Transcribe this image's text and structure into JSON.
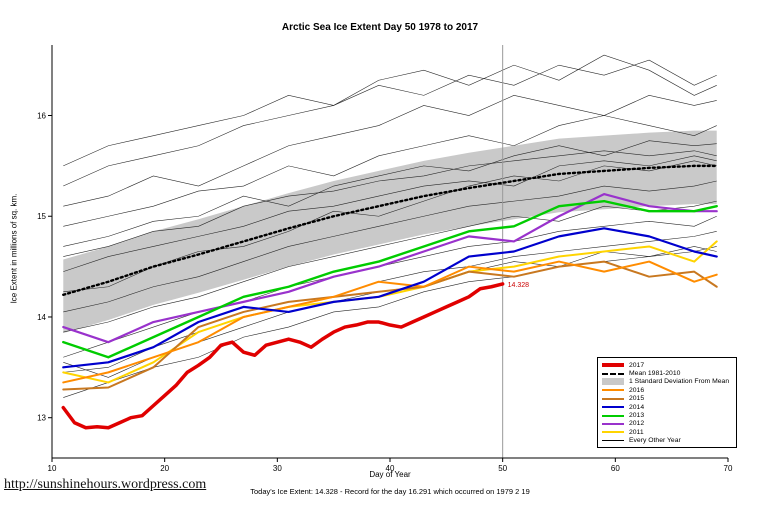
{
  "footer": {
    "url": "http://sunshinehours.wordpress.com",
    "note": "Today's Ice Extent: 14.328  - Record for the day  16.291 which occurred on 1979 2 19"
  },
  "chart_data": {
    "type": "line",
    "title": "Arctic Sea Ice Extent Day 50 1978 to 2017",
    "xlabel": "Day of Year",
    "ylabel": "Ice Extent in millions of sq. km.",
    "xlim": [
      10,
      70
    ],
    "ylim": [
      12.6,
      16.7
    ],
    "xticks": [
      10,
      20,
      30,
      40,
      50,
      60,
      70
    ],
    "yticks": [
      13,
      14,
      15,
      16
    ],
    "vline_x": 50,
    "vline_color": "#999999",
    "annotation": {
      "text": "14.328",
      "x": 50,
      "y": 14.328,
      "color": "#CC0000"
    },
    "x": [
      11,
      15,
      19,
      23,
      27,
      31,
      35,
      39,
      43,
      47,
      51,
      55,
      59,
      63,
      67,
      69
    ],
    "band": {
      "label": "1 Standard Deviation From Mean",
      "color": "#C9C9C9",
      "x": [
        11,
        15,
        19,
        23,
        27,
        31,
        35,
        39,
        43,
        47,
        51,
        55,
        59,
        63,
        67,
        69
      ],
      "upper": [
        14.57,
        14.7,
        14.85,
        14.97,
        15.1,
        15.23,
        15.35,
        15.45,
        15.55,
        15.63,
        15.7,
        15.77,
        15.8,
        15.83,
        15.85,
        15.85
      ],
      "lower": [
        13.84,
        13.97,
        14.12,
        14.24,
        14.37,
        14.5,
        14.62,
        14.72,
        14.82,
        14.9,
        14.97,
        15.04,
        15.07,
        15.1,
        15.12,
        15.12
      ]
    },
    "background": {
      "name": "Every Other Year",
      "color": "#2a2a2a",
      "width": 0.6,
      "lines": [
        [
          15.3,
          15.5,
          15.6,
          15.7,
          15.9,
          16.0,
          16.1,
          16.3,
          16.2,
          16.4,
          16.3,
          16.5,
          16.4,
          16.55,
          16.3,
          16.4
        ],
        [
          15.1,
          15.2,
          15.4,
          15.3,
          15.5,
          15.7,
          15.8,
          15.9,
          16.1,
          16.0,
          16.2,
          16.1,
          16.0,
          16.2,
          16.1,
          16.15
        ],
        [
          14.9,
          15.0,
          15.1,
          15.25,
          15.3,
          15.5,
          15.4,
          15.6,
          15.7,
          15.8,
          15.7,
          15.9,
          16.0,
          15.9,
          15.8,
          15.9
        ],
        [
          14.7,
          14.8,
          14.95,
          15.0,
          15.2,
          15.1,
          15.3,
          15.4,
          15.5,
          15.45,
          15.6,
          15.7,
          15.6,
          15.75,
          15.7,
          15.72
        ],
        [
          14.45,
          14.6,
          14.7,
          14.8,
          14.9,
          15.05,
          15.1,
          15.2,
          15.3,
          15.35,
          15.3,
          15.5,
          15.55,
          15.5,
          15.6,
          15.55
        ],
        [
          14.25,
          14.3,
          14.5,
          14.65,
          14.7,
          14.85,
          15.05,
          15.0,
          15.15,
          15.3,
          15.4,
          15.35,
          15.5,
          15.45,
          15.55,
          15.5
        ],
        [
          14.05,
          14.15,
          14.3,
          14.4,
          14.55,
          14.7,
          14.8,
          14.9,
          15.0,
          15.1,
          15.15,
          15.2,
          15.3,
          15.25,
          15.3,
          15.35
        ],
        [
          13.85,
          13.95,
          14.1,
          14.2,
          14.35,
          14.5,
          14.6,
          14.7,
          14.8,
          14.9,
          15.0,
          14.95,
          15.1,
          15.05,
          15.1,
          15.15
        ],
        [
          13.6,
          13.75,
          13.9,
          14.05,
          14.15,
          14.3,
          14.4,
          14.5,
          14.6,
          14.7,
          14.75,
          14.85,
          14.9,
          14.95,
          14.9,
          15.0
        ],
        [
          13.45,
          13.5,
          13.7,
          13.85,
          14.0,
          14.1,
          14.2,
          14.35,
          14.45,
          14.5,
          14.6,
          14.65,
          14.7,
          14.75,
          14.8,
          14.85
        ],
        [
          13.2,
          13.35,
          13.5,
          13.6,
          13.8,
          13.9,
          14.05,
          14.1,
          14.25,
          14.35,
          14.4,
          14.5,
          14.55,
          14.6,
          14.65,
          14.7
        ],
        [
          13.55,
          13.4,
          13.6,
          13.75,
          13.9,
          14.05,
          14.15,
          14.25,
          14.3,
          14.45,
          14.55,
          14.5,
          14.65,
          14.6,
          14.7,
          14.65
        ],
        [
          15.5,
          15.7,
          15.8,
          15.9,
          16.0,
          16.2,
          16.1,
          16.35,
          16.45,
          16.3,
          16.5,
          16.35,
          16.6,
          16.45,
          16.2,
          16.3
        ],
        [
          14.6,
          14.7,
          14.85,
          14.9,
          15.1,
          15.2,
          15.25,
          15.35,
          15.4,
          15.5,
          15.55,
          15.6,
          15.65,
          15.6,
          15.65,
          15.6
        ]
      ]
    },
    "series": [
      {
        "name": "2011",
        "color": "#FFD400",
        "width": 2,
        "values": [
          13.45,
          13.35,
          13.55,
          13.85,
          14.0,
          14.1,
          14.15,
          14.2,
          14.3,
          14.45,
          14.5,
          14.6,
          14.65,
          14.7,
          14.55,
          14.75
        ]
      },
      {
        "name": "2015",
        "color": "#C87820",
        "width": 2,
        "values": [
          13.28,
          13.3,
          13.5,
          13.9,
          14.05,
          14.15,
          14.2,
          14.25,
          14.3,
          14.45,
          14.4,
          14.5,
          14.55,
          14.4,
          14.45,
          14.3
        ]
      },
      {
        "name": "2016",
        "color": "#FF8C00",
        "width": 2,
        "values": [
          13.35,
          13.45,
          13.6,
          13.75,
          14.0,
          14.1,
          14.2,
          14.35,
          14.3,
          14.5,
          14.45,
          14.55,
          14.45,
          14.55,
          14.35,
          14.42
        ]
      },
      {
        "name": "2014",
        "color": "#0000CD",
        "width": 2.2,
        "values": [
          13.5,
          13.55,
          13.7,
          13.95,
          14.1,
          14.05,
          14.15,
          14.2,
          14.35,
          14.6,
          14.65,
          14.8,
          14.88,
          14.8,
          14.65,
          14.6
        ]
      },
      {
        "name": "2012",
        "color": "#9932CC",
        "width": 2.2,
        "values": [
          13.9,
          13.75,
          13.95,
          14.05,
          14.15,
          14.25,
          14.4,
          14.5,
          14.65,
          14.8,
          14.75,
          15.0,
          15.22,
          15.1,
          15.05,
          15.05
        ]
      },
      {
        "name": "2013",
        "color": "#00CC00",
        "width": 2.4,
        "values": [
          13.75,
          13.6,
          13.8,
          14.0,
          14.2,
          14.3,
          14.45,
          14.55,
          14.7,
          14.85,
          14.9,
          15.1,
          15.15,
          15.05,
          15.05,
          15.1
        ]
      },
      {
        "name": "Mean 1981-2010",
        "color": "#000000",
        "width": 2.4,
        "dash": "2,3",
        "values": [
          14.22,
          14.35,
          14.5,
          14.62,
          14.75,
          14.88,
          15.0,
          15.1,
          15.2,
          15.28,
          15.35,
          15.42,
          15.45,
          15.48,
          15.5,
          15.5
        ]
      },
      {
        "name": "2017",
        "color": "#E00000",
        "width": 3.5,
        "x": [
          11,
          12,
          13,
          14,
          15,
          16,
          17,
          18,
          19,
          20,
          21,
          22,
          23,
          24,
          25,
          26,
          27,
          28,
          29,
          30,
          31,
          32,
          33,
          34,
          35,
          36,
          37,
          38,
          39,
          40,
          41,
          42,
          43,
          44,
          45,
          46,
          47,
          48,
          49,
          50
        ],
        "values": [
          13.1,
          12.95,
          12.9,
          12.91,
          12.9,
          12.95,
          13.0,
          13.02,
          13.12,
          13.22,
          13.32,
          13.45,
          13.52,
          13.6,
          13.72,
          13.75,
          13.65,
          13.62,
          13.72,
          13.75,
          13.78,
          13.75,
          13.7,
          13.78,
          13.85,
          13.9,
          13.92,
          13.95,
          13.95,
          13.92,
          13.9,
          13.95,
          14.0,
          14.05,
          14.1,
          14.15,
          14.2,
          14.28,
          14.3,
          14.328
        ]
      }
    ],
    "legend": [
      {
        "label": "2017",
        "color": "#E00000",
        "lw": 4
      },
      {
        "label": "Mean 1981-2010",
        "color": "#000000",
        "lw": 2,
        "dash": true
      },
      {
        "label": "1 Standard Deviation From Mean",
        "color": "#C9C9C9",
        "type": "band"
      },
      {
        "label": "2016",
        "color": "#FF8C00",
        "lw": 2
      },
      {
        "label": "2015",
        "color": "#C87820",
        "lw": 2
      },
      {
        "label": "2014",
        "color": "#0000CD",
        "lw": 2
      },
      {
        "label": "2013",
        "color": "#00CC00",
        "lw": 2
      },
      {
        "label": "2012",
        "color": "#9932CC",
        "lw": 2
      },
      {
        "label": "2011",
        "color": "#FFD400",
        "lw": 2
      },
      {
        "label": "Every Other Year",
        "color": "#000000",
        "lw": 1
      }
    ]
  }
}
